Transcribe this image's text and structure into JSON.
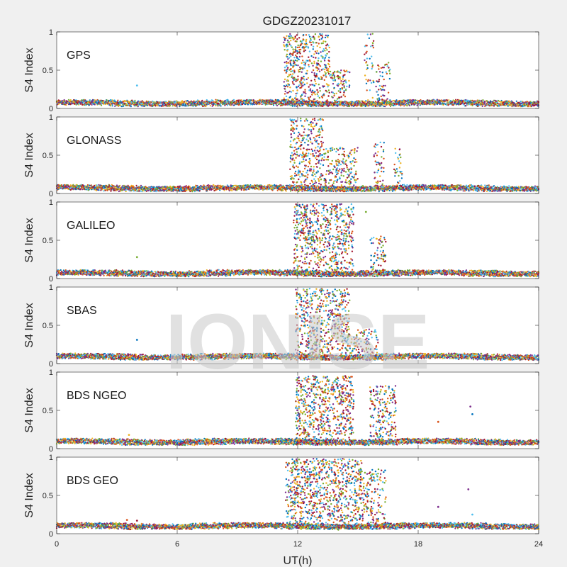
{
  "watermark": "IONISE",
  "colors": {
    "figure_bg": "#f0f0f0",
    "axes_bg": "#ffffff",
    "series": [
      "#0072BD",
      "#D95319",
      "#EDB120",
      "#7E2F8E",
      "#77AC30",
      "#4DBEEE",
      "#A2142F"
    ]
  },
  "chart_data": {
    "type": "scatter",
    "title": "GDGZ20231017",
    "xlabel": "UT(h)",
    "ylabel": "S4 Index",
    "xlim": [
      0,
      24
    ],
    "ylim": [
      0,
      1
    ],
    "xticks": [
      0,
      6,
      12,
      18,
      24
    ],
    "yticks": [
      0,
      0.5,
      1
    ],
    "grid": false,
    "panels": [
      {
        "label": "GPS",
        "baseline": 0.07,
        "spikes": [
          {
            "x": [
              11.3,
              13.6
            ],
            "ymax": 0.98,
            "density": 0.85
          },
          {
            "x": [
              13.6,
              14.6
            ],
            "ymax": 0.5,
            "density": 0.4
          },
          {
            "x": [
              15.3,
              15.8
            ],
            "ymax": 0.98,
            "density": 0.35
          },
          {
            "x": [
              15.9,
              16.6
            ],
            "ymax": 0.6,
            "density": 0.35
          }
        ],
        "outliers": [
          {
            "x": 4.0,
            "y": 0.3
          }
        ]
      },
      {
        "label": "GLONASS",
        "baseline": 0.07,
        "spikes": [
          {
            "x": [
              11.6,
              13.3
            ],
            "ymax": 0.98,
            "density": 0.8
          },
          {
            "x": [
              13.3,
              15.0
            ],
            "ymax": 0.6,
            "density": 0.45
          },
          {
            "x": [
              15.8,
              16.3
            ],
            "ymax": 0.68,
            "density": 0.35
          },
          {
            "x": [
              16.8,
              17.2
            ],
            "ymax": 0.6,
            "density": 0.3
          }
        ],
        "outliers": []
      },
      {
        "label": "GALILEO",
        "baseline": 0.07,
        "spikes": [
          {
            "x": [
              11.8,
              14.8
            ],
            "ymax": 0.98,
            "density": 0.9
          },
          {
            "x": [
              15.6,
              16.4
            ],
            "ymax": 0.55,
            "density": 0.35
          }
        ],
        "outliers": [
          {
            "x": 4.0,
            "y": 0.28
          },
          {
            "x": 15.4,
            "y": 0.87
          }
        ]
      },
      {
        "label": "SBAS",
        "baseline": 0.09,
        "spikes": [
          {
            "x": [
              11.9,
              14.6
            ],
            "ymax": 0.98,
            "density": 0.85
          },
          {
            "x": [
              14.6,
              16.0
            ],
            "ymax": 0.45,
            "density": 0.3
          }
        ],
        "outliers": [
          {
            "x": 4.0,
            "y": 0.31
          }
        ]
      },
      {
        "label": "BDS NGEO",
        "baseline": 0.09,
        "spikes": [
          {
            "x": [
              11.9,
              14.8
            ],
            "ymax": 0.95,
            "density": 0.9
          },
          {
            "x": [
              15.6,
              16.9
            ],
            "ymax": 0.82,
            "density": 0.6
          }
        ],
        "outliers": [
          {
            "x": 19.0,
            "y": 0.35
          },
          {
            "x": 20.6,
            "y": 0.55
          },
          {
            "x": 20.7,
            "y": 0.45
          },
          {
            "x": 3.6,
            "y": 0.18
          }
        ]
      },
      {
        "label": "BDS GEO",
        "baseline": 0.1,
        "spikes": [
          {
            "x": [
              11.4,
              15.2
            ],
            "ymax": 0.98,
            "density": 0.9
          },
          {
            "x": [
              15.2,
              16.4
            ],
            "ymax": 0.85,
            "density": 0.55
          }
        ],
        "outliers": [
          {
            "x": 19.0,
            "y": 0.35
          },
          {
            "x": 20.5,
            "y": 0.58
          },
          {
            "x": 20.7,
            "y": 0.25
          },
          {
            "x": 3.5,
            "y": 0.18
          },
          {
            "x": 4.0,
            "y": 0.17
          }
        ]
      }
    ]
  }
}
